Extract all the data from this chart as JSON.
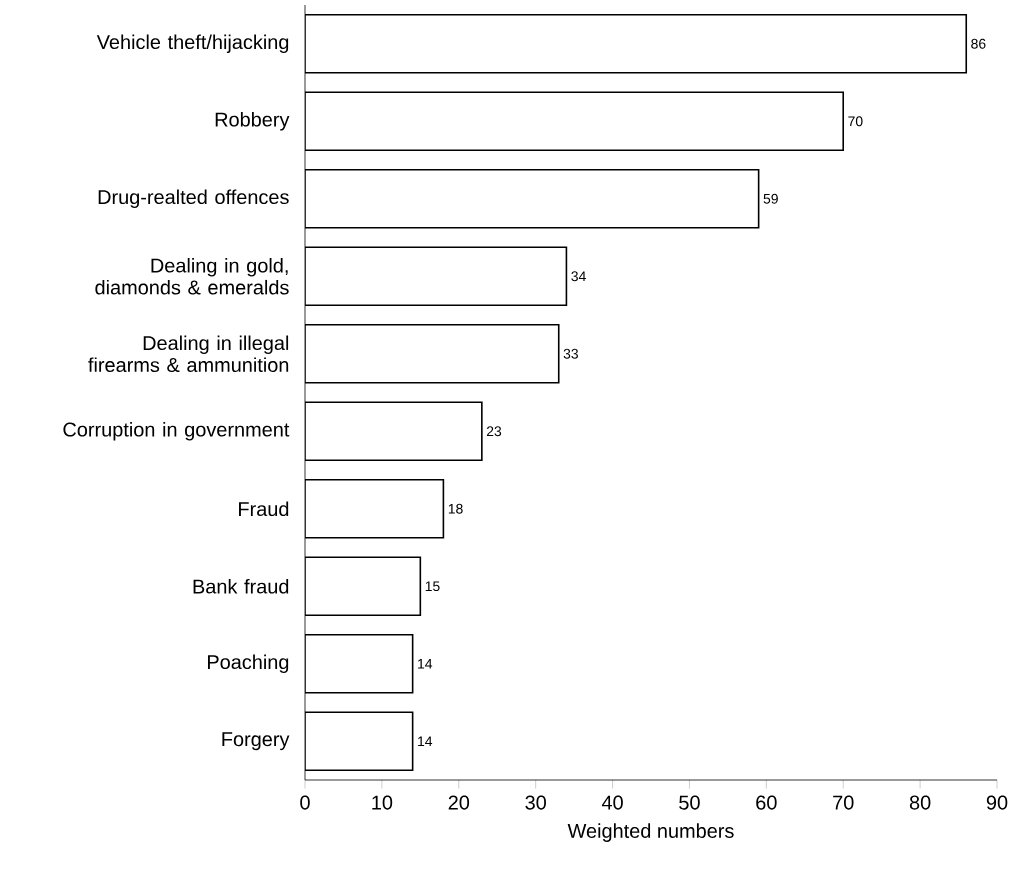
{
  "chart_data": {
    "type": "bar",
    "orientation": "horizontal",
    "xlabel": "Weighted numbers",
    "categories": [
      "Vehicle theft/hijacking",
      "Robbery",
      "Drug-realted offences",
      "Dealing in gold, diamonds & emeralds",
      "Dealing in illegal firearms & ammunition",
      "Corruption in government",
      "Fraud",
      "Bank fraud",
      "Poaching",
      "Forgery"
    ],
    "values": [
      86,
      70,
      59,
      34,
      33,
      23,
      18,
      15,
      14,
      14
    ],
    "color": "#ffffff",
    "xlim": [
      0,
      90
    ],
    "xticks": [
      0,
      10,
      20,
      30,
      40,
      50,
      60,
      70,
      80,
      90
    ],
    "data_labels": true
  }
}
